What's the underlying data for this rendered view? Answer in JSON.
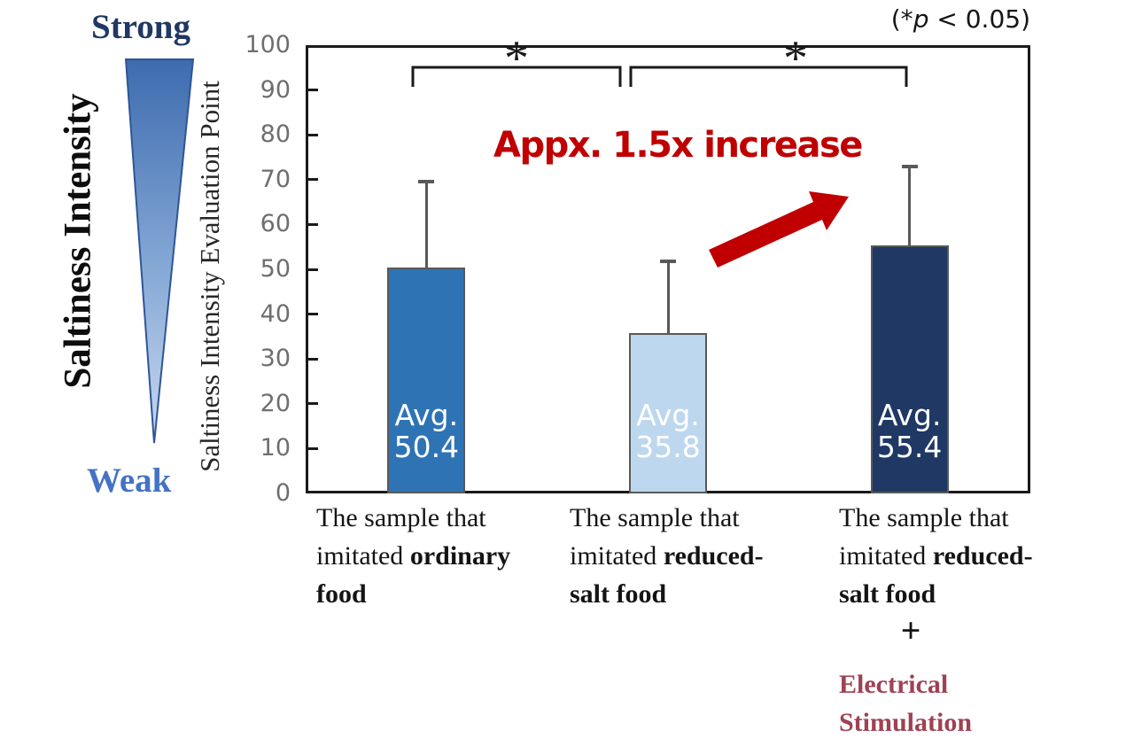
{
  "p_note": {
    "open": "(*",
    "p": "p",
    "rest": " < 0.05)"
  },
  "left_scale": {
    "title": "Saltiness Intensity",
    "strong": "Strong",
    "weak": "Weak",
    "strong_color": "#1F3864",
    "weak_color": "#4472C4",
    "gradient_top": "#3D6BAE",
    "gradient_mid": "#86A9D6",
    "gradient_bottom": "#C9D9F0",
    "triangle_outline": "#2F5597"
  },
  "annotations": {
    "increase_text": "Appx. 1.5x increase",
    "increase_color": "#C00000",
    "arrow_color": "#C00000",
    "sig_marker": "*"
  },
  "chart_data": {
    "type": "bar",
    "title": "",
    "xlabel": "",
    "ylabel": "Saltiness Intensity Evaluation Point",
    "ylim": [
      0,
      100
    ],
    "yticks": [
      0,
      10,
      20,
      30,
      40,
      50,
      60,
      70,
      80,
      90,
      100
    ],
    "grid": false,
    "legend": "none",
    "values": [
      50.4,
      35.8,
      55.4
    ],
    "error_whisker_top": [
      69.5,
      51.8,
      72.9
    ],
    "bar_colors": [
      "#2E74B5",
      "#BDD7EE",
      "#1F3864"
    ],
    "bar_border_color": "#595959",
    "error_bar_color": "#595959",
    "bar_labels": [
      {
        "prefix": "Avg.",
        "value": "50.4"
      },
      {
        "prefix": "Avg.",
        "value": "35.8"
      },
      {
        "prefix": "Avg.",
        "value": "55.4"
      }
    ],
    "significance_brackets": [
      {
        "between": [
          0,
          1
        ],
        "marker": "*"
      },
      {
        "between": [
          1,
          2
        ],
        "marker": "*"
      }
    ],
    "categories": [
      {
        "name": "ordinary-food",
        "lines": [
          [
            {
              "t": "The sample that",
              "b": false
            }
          ],
          [
            {
              "t": "imitated ",
              "b": false
            },
            {
              "t": "ordinary",
              "b": true
            }
          ],
          [
            {
              "t": "food",
              "b": true
            }
          ]
        ]
      },
      {
        "name": "reduced-salt-food",
        "lines": [
          [
            {
              "t": "The sample that",
              "b": false
            }
          ],
          [
            {
              "t": "imitated ",
              "b": false
            },
            {
              "t": "reduced-",
              "b": true
            }
          ],
          [
            {
              "t": "salt food",
              "b": true
            }
          ]
        ]
      },
      {
        "name": "reduced-salt-food-electrical-stimulation",
        "lines": [
          [
            {
              "t": "The sample that",
              "b": false
            }
          ],
          [
            {
              "t": "imitated ",
              "b": false
            },
            {
              "t": "reduced-",
              "b": true
            }
          ],
          [
            {
              "t": "salt food",
              "b": true
            }
          ]
        ],
        "extra": {
          "plus": "+",
          "lines": [
            "Electrical",
            "Stimulation"
          ],
          "color": "#9E4253"
        }
      }
    ]
  }
}
